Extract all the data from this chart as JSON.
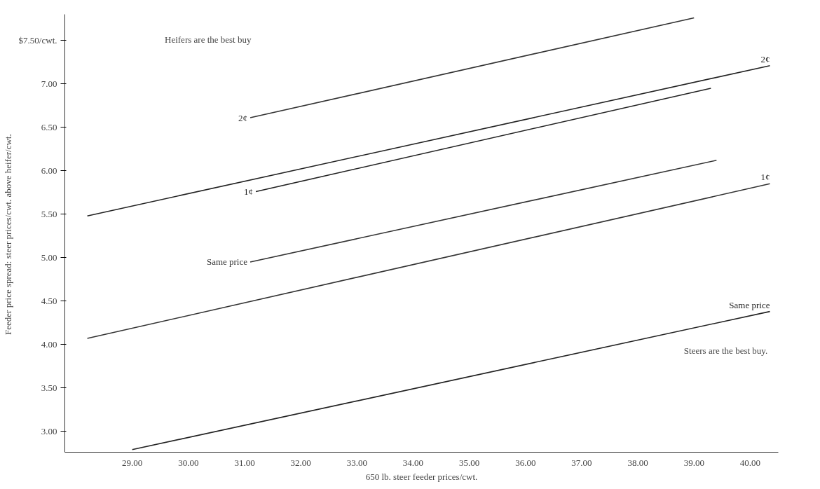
{
  "chart_data": {
    "type": "line",
    "xlabel": "650 lb. steer feeder prices/cwt.",
    "ylabel": "Feeder price spread:  steer prices/cwt. above heifer/cwt.",
    "xlim": [
      27.8,
      40.5
    ],
    "ylim": [
      2.76,
      7.8
    ],
    "xticks": [
      {
        "value": 29,
        "label": "29.00"
      },
      {
        "value": 30,
        "label": "30.00"
      },
      {
        "value": 31,
        "label": "31.00"
      },
      {
        "value": 32,
        "label": "32.00"
      },
      {
        "value": 33,
        "label": "33.00"
      },
      {
        "value": 34,
        "label": "34.00"
      },
      {
        "value": 35,
        "label": "35.00"
      },
      {
        "value": 36,
        "label": "36.00"
      },
      {
        "value": 37,
        "label": "37.00"
      },
      {
        "value": 38,
        "label": "38.00"
      },
      {
        "value": 39,
        "label": "39.00"
      },
      {
        "value": 40,
        "label": "40.00"
      }
    ],
    "yticks": [
      {
        "value": 3,
        "label": "3.00"
      },
      {
        "value": 3.5,
        "label": "3.50"
      },
      {
        "value": 4,
        "label": "4.00"
      },
      {
        "value": 4.5,
        "label": "4.50"
      },
      {
        "value": 5,
        "label": "5.00"
      },
      {
        "value": 5.5,
        "label": "5.50"
      },
      {
        "value": 6,
        "label": "6.00"
      },
      {
        "value": 6.5,
        "label": "6.50"
      },
      {
        "value": 7,
        "label": "7.00"
      },
      {
        "value": 7.5,
        "label": "$7.50/cwt."
      }
    ],
    "grid": false,
    "marker": "none",
    "line_style": "solid",
    "series": [
      {
        "name": "2¢",
        "color": "#333333",
        "x": [
          31.1,
          39.0
        ],
        "values": [
          6.61,
          7.76
        ]
      },
      {
        "name": "1¢",
        "color": "#222222",
        "x": [
          31.2,
          39.3
        ],
        "values": [
          5.76,
          6.95
        ]
      },
      {
        "name": "Same price",
        "color": "#333333",
        "x": [
          31.1,
          39.4
        ],
        "values": [
          4.95,
          6.12
        ]
      },
      {
        "name": "2¢",
        "color": "#222222",
        "x": [
          28.2,
          40.35
        ],
        "values": [
          5.48,
          7.21
        ]
      },
      {
        "name": "1¢",
        "color": "#333333",
        "x": [
          28.2,
          40.35
        ],
        "values": [
          4.07,
          5.85
        ]
      },
      {
        "name": "Same price",
        "color": "#222222",
        "x": [
          29.0,
          40.35
        ],
        "values": [
          2.79,
          4.38
        ]
      }
    ],
    "annotations": [
      "Heifers are the best buy",
      "Steers are the best buy."
    ]
  }
}
